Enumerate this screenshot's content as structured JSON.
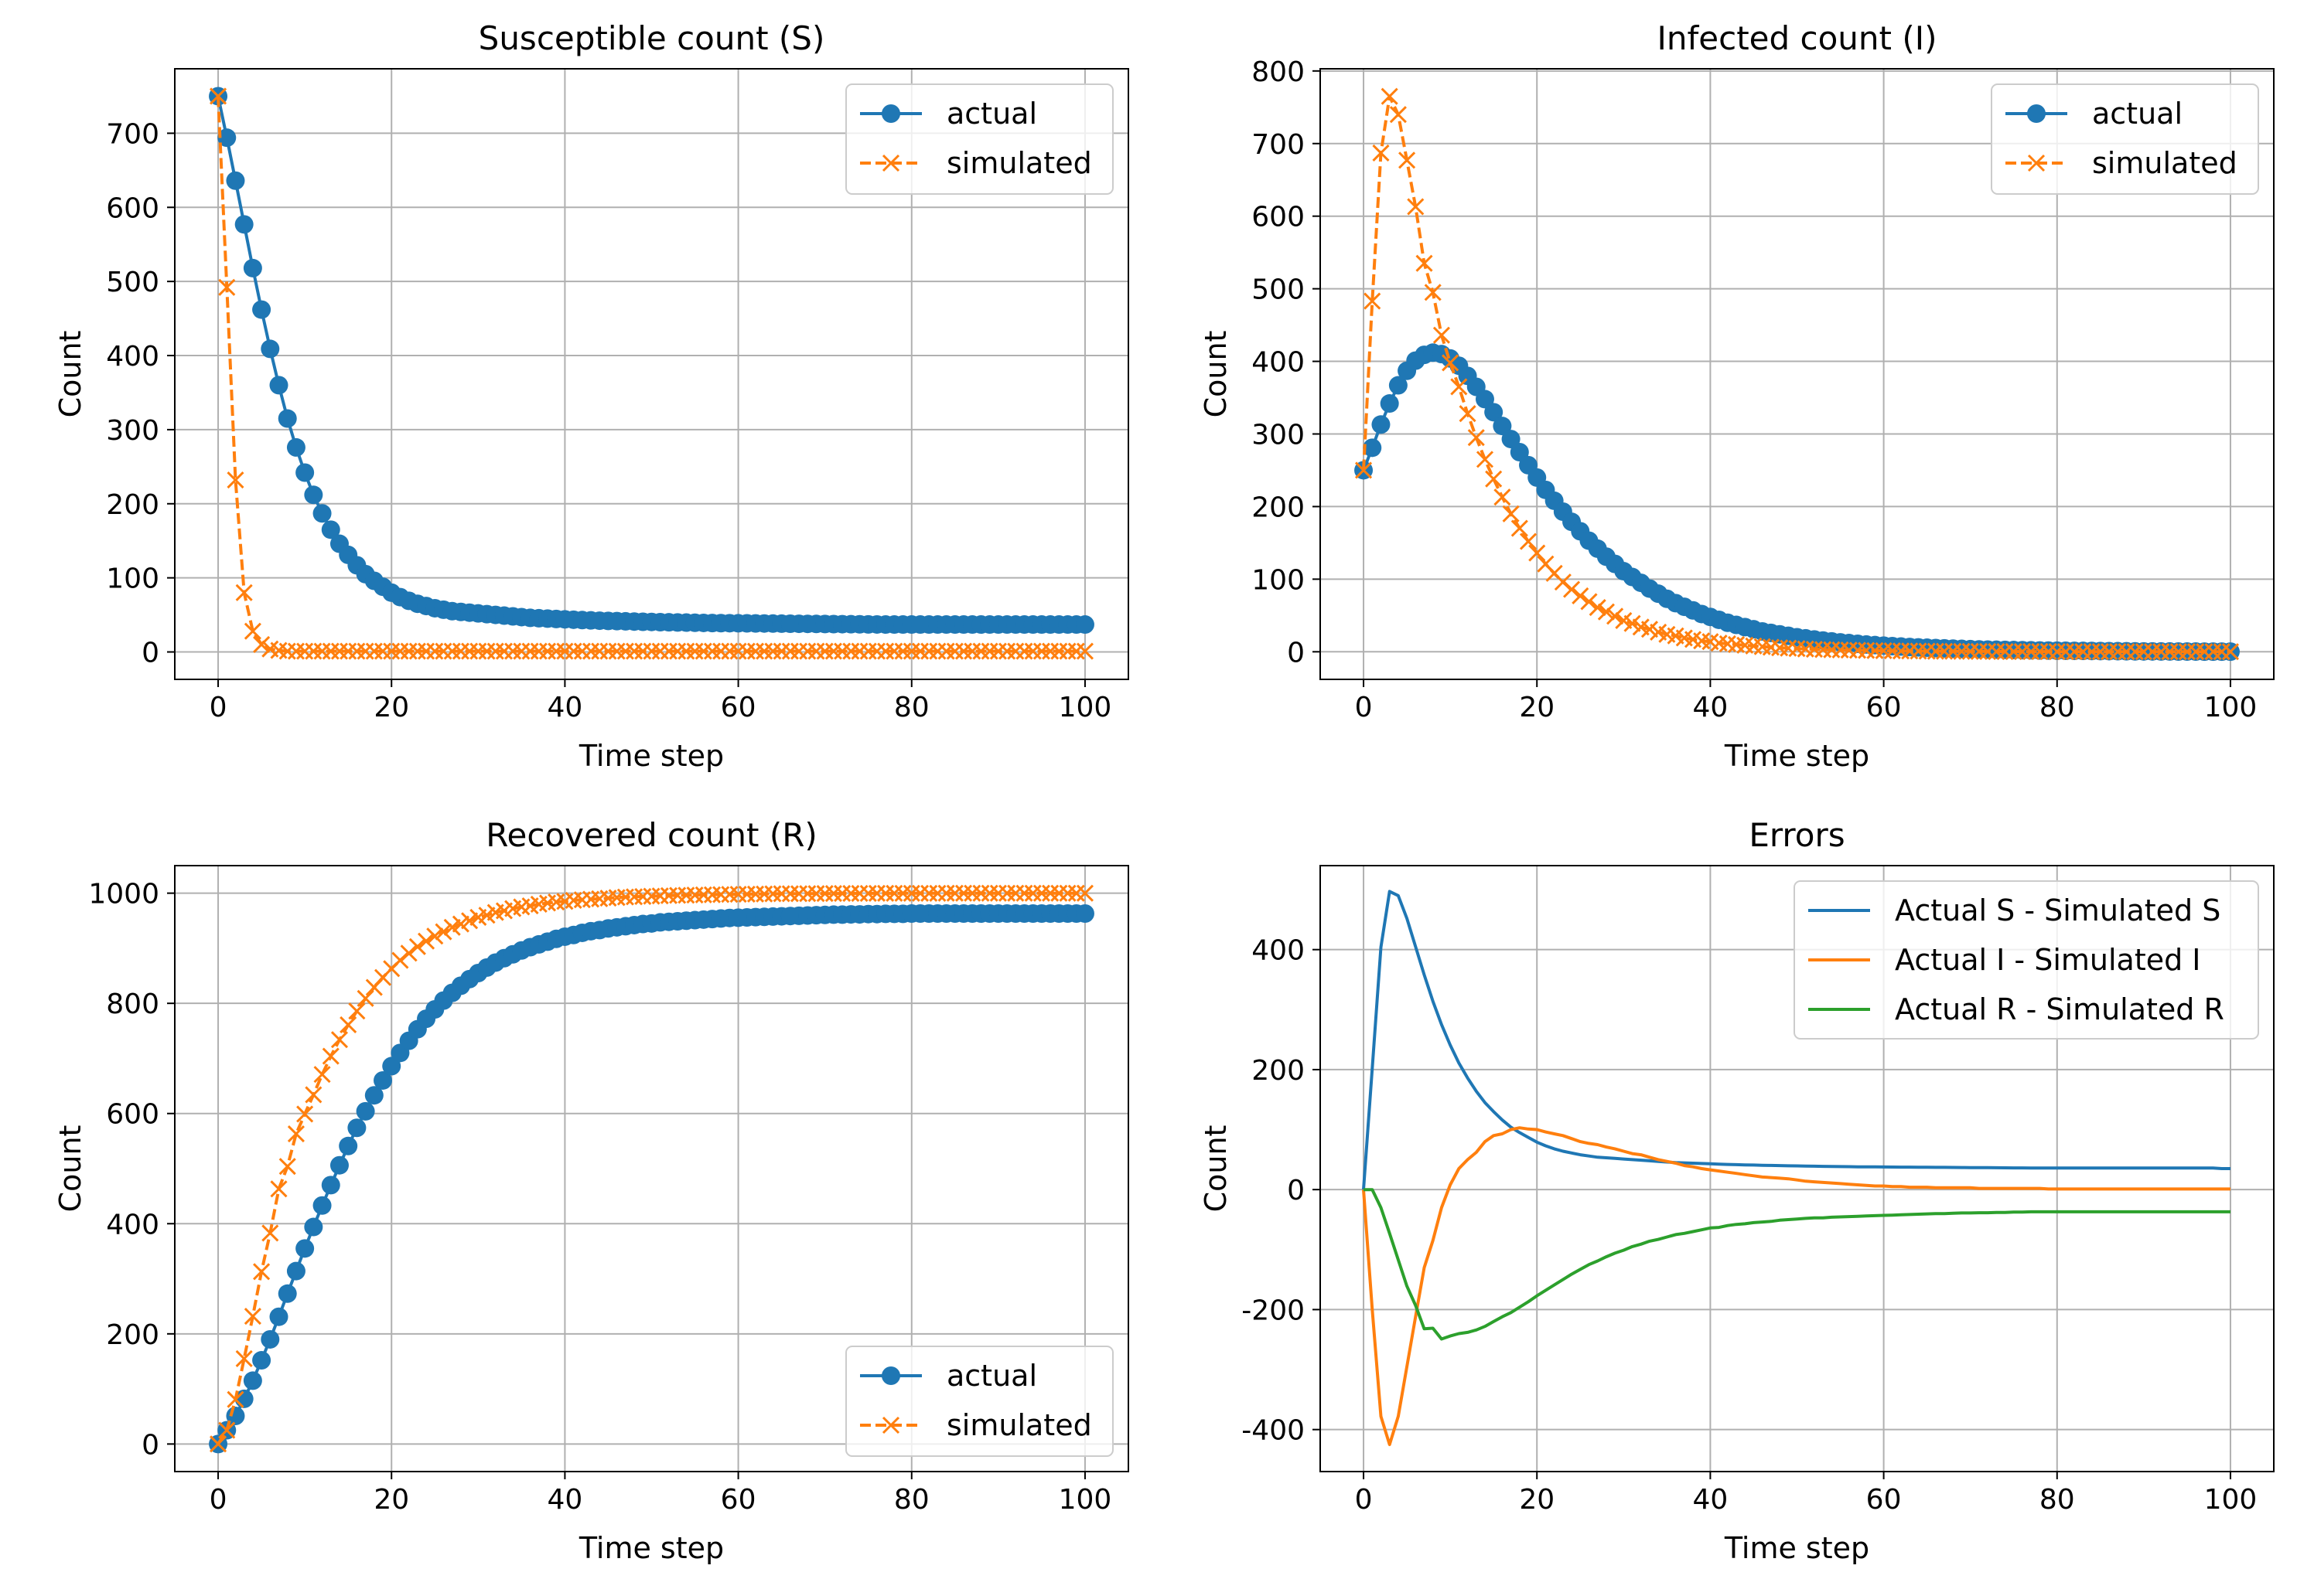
{
  "colors": {
    "blue": "#1f77b4",
    "orange": "#ff7f0e",
    "green": "#2ca02c",
    "grid": "#b0b0b0"
  },
  "chart_data": [
    {
      "type": "line",
      "title": "Susceptible count (S)",
      "xlabel": "Time step",
      "ylabel": "Count",
      "xlim": [
        -5,
        105
      ],
      "ylim": [
        -37,
        787
      ],
      "xticks": [
        0,
        20,
        40,
        60,
        80,
        100
      ],
      "yticks": [
        0,
        100,
        200,
        300,
        400,
        500,
        600,
        700
      ],
      "grid": true,
      "legend_position": "top-right",
      "series": [
        {
          "name": "actual",
          "style": "solid-circle",
          "color": "#1f77b4",
          "x_range": [
            0,
            100
          ],
          "values": [
            750,
            694,
            636,
            577,
            518,
            462,
            409,
            360,
            315,
            276,
            242,
            212,
            187,
            165,
            146,
            131,
            117,
            105,
            96,
            88,
            80,
            74,
            69,
            65,
            62,
            59,
            57,
            55,
            54,
            53,
            52,
            51,
            50,
            49,
            48,
            47,
            46,
            45.5,
            45,
            44.5,
            44,
            43.5,
            43,
            42.6,
            42.2,
            41.9,
            41.6,
            41.3,
            41,
            40.7,
            40.5,
            40.2,
            40,
            39.8,
            39.6,
            39.4,
            39.2,
            39,
            38.9,
            38.8,
            38.7,
            38.6,
            38.5,
            38.4,
            38.3,
            38.2,
            38.1,
            38,
            37.9,
            37.8,
            37.7,
            37.6,
            37.5,
            37.4,
            37.3,
            37.2,
            37.1,
            37,
            37,
            37,
            37,
            37,
            37,
            37,
            37,
            37,
            37,
            37,
            37,
            37,
            37,
            37,
            37,
            37,
            37,
            37,
            37,
            37,
            37,
            37,
            37
          ]
        },
        {
          "name": "simulated",
          "style": "dashed-x",
          "color": "#ff7f0e",
          "x_range": [
            0,
            100
          ],
          "values": [
            750,
            492,
            232,
            80,
            28,
            10,
            4,
            2,
            1,
            1,
            1,
            1,
            1,
            1,
            1,
            1,
            1,
            1,
            1,
            1,
            1,
            1,
            1,
            1,
            1,
            1,
            1,
            1,
            1,
            1,
            1,
            1,
            1,
            1,
            1,
            1,
            1,
            1,
            1,
            1,
            1,
            1,
            1,
            1,
            1,
            1,
            1,
            1,
            1,
            1,
            1,
            1,
            1,
            1,
            1,
            1,
            1,
            1,
            1,
            1,
            1,
            1,
            1,
            1,
            1,
            1,
            1,
            1,
            1,
            1,
            1,
            1,
            1,
            1,
            1,
            1,
            1,
            1,
            1,
            1,
            1,
            1,
            1,
            1,
            1,
            1,
            1,
            1,
            1,
            1,
            1,
            1,
            1,
            1,
            1,
            1,
            1,
            1,
            1,
            1,
            1
          ]
        }
      ]
    },
    {
      "type": "line",
      "title": "Infected count (I)",
      "xlabel": "Time step",
      "ylabel": "Count",
      "xlim": [
        -5,
        105
      ],
      "ylim": [
        -38,
        803
      ],
      "xticks": [
        0,
        20,
        40,
        60,
        80,
        100
      ],
      "yticks": [
        0,
        100,
        200,
        300,
        400,
        500,
        600,
        700,
        800
      ],
      "grid": true,
      "legend_position": "top-right",
      "series": [
        {
          "name": "actual",
          "style": "solid-circle",
          "color": "#1f77b4",
          "x_range": [
            0,
            100
          ],
          "values": [
            250,
            281,
            313,
            342,
            367,
            387,
            401,
            409,
            412,
            410,
            404,
            394,
            380,
            365,
            348,
            330,
            311,
            293,
            275,
            257,
            240,
            223,
            208,
            193,
            179,
            166,
            153,
            142,
            131,
            121,
            111,
            103,
            95,
            87,
            80,
            73,
            67,
            62,
            57,
            52,
            48,
            44,
            40,
            37,
            34,
            31,
            28,
            26,
            24,
            22,
            20,
            18.5,
            17,
            15.5,
            14.3,
            13,
            12,
            11,
            10,
            9.2,
            8.5,
            7.8,
            7.2,
            6.6,
            6.1,
            5.6,
            5.1,
            4.7,
            4.3,
            4,
            3.6,
            3.3,
            3,
            2.8,
            2.6,
            2.4,
            2.2,
            2,
            1.8,
            1.7,
            1.5,
            1.4,
            1.3,
            1.2,
            1.1,
            1,
            0.9,
            0.8,
            0.7,
            0.6,
            0.5,
            0.5,
            0.4,
            0.4,
            0.3,
            0.3,
            0.3,
            0.2,
            0.2,
            0.2,
            0.2
          ]
        },
        {
          "name": "simulated",
          "style": "dashed-x",
          "color": "#ff7f0e",
          "x_range": [
            0,
            100
          ],
          "values": [
            250,
            483,
            687,
            765,
            740,
            677,
            613,
            535,
            495,
            436,
            398,
            365,
            328,
            295,
            265,
            238,
            213,
            190,
            170,
            152,
            136,
            121,
            108,
            96,
            86,
            77,
            69,
            61,
            55,
            49,
            43,
            39,
            34,
            31,
            27,
            24,
            22,
            19,
            17,
            15,
            14,
            12,
            11,
            10,
            9,
            8,
            7,
            6.2,
            5.5,
            4.9,
            4.4,
            3.9,
            3.5,
            3.1,
            2.8,
            2.5,
            2.2,
            2,
            1.8,
            1.6,
            1.4,
            1.3,
            1.1,
            1,
            0.9,
            0.8,
            0.7,
            0.6,
            0.6,
            0.5,
            0.5,
            0.4,
            0.4,
            0.3,
            0.3,
            0.3,
            0.2,
            0.2,
            0.2,
            0.2,
            0.1,
            0.1,
            0.1,
            0.1,
            0.1,
            0.1,
            0.1,
            0.1,
            0.1,
            0.1,
            0.1,
            0.1,
            0.1,
            0.1,
            0.1,
            0.1,
            0.1,
            0.1,
            0.1,
            0.1,
            0.1
          ]
        }
      ]
    },
    {
      "type": "line",
      "title": "Recovered count (R)",
      "xlabel": "Time step",
      "ylabel": "Count",
      "xlim": [
        -5,
        105
      ],
      "ylim": [
        -50,
        1050
      ],
      "xticks": [
        0,
        20,
        40,
        60,
        80,
        100
      ],
      "yticks": [
        0,
        200,
        400,
        600,
        800,
        1000
      ],
      "grid": true,
      "legend_position": "bottom-right",
      "series": [
        {
          "name": "actual",
          "style": "solid-circle",
          "color": "#1f77b4",
          "x_range": [
            0,
            100
          ],
          "values": [
            0,
            25,
            51,
            82,
            115,
            152,
            190,
            231,
            273,
            314,
            355,
            394,
            433,
            470,
            506,
            541,
            574,
            604,
            633,
            660,
            686,
            710,
            732,
            753,
            772,
            789,
            805,
            819,
            832,
            844,
            855,
            865,
            874,
            882,
            889,
            896,
            902,
            907,
            912,
            917,
            921,
            924,
            928,
            931,
            933,
            936,
            938,
            940,
            942,
            944,
            945,
            947,
            948,
            949,
            950,
            951,
            952,
            953,
            954,
            955,
            955.5,
            956,
            956.5,
            957,
            957.5,
            958,
            958.5,
            959,
            959.5,
            960,
            960.5,
            961,
            961,
            961.5,
            961.5,
            962,
            962,
            962.5,
            962.5,
            962.5,
            963,
            963,
            963,
            963,
            963,
            963,
            963,
            963,
            963,
            963,
            963,
            963,
            963,
            963,
            963,
            963,
            963,
            963,
            963,
            963,
            963
          ]
        },
        {
          "name": "simulated",
          "style": "dashed-x",
          "color": "#ff7f0e",
          "x_range": [
            0,
            100
          ],
          "values": [
            0,
            25,
            81,
            155,
            232,
            313,
            383,
            463,
            504,
            563,
            599,
            634,
            671,
            704,
            734,
            761,
            786,
            809,
            829,
            847,
            863,
            878,
            891,
            903,
            913,
            922,
            930,
            938,
            944,
            950,
            956,
            960,
            965,
            968,
            972,
            975,
            977,
            980,
            982,
            984,
            985,
            987,
            988,
            989,
            990,
            991,
            992,
            993,
            993.5,
            994,
            994.5,
            995,
            995.5,
            996,
            996.3,
            996.6,
            996.9,
            997.2,
            997.5,
            997.8,
            998,
            998.2,
            998.4,
            998.6,
            998.8,
            999,
            999,
            999.1,
            999.2,
            999.3,
            999.4,
            999.4,
            999.5,
            999.5,
            999.6,
            999.6,
            999.7,
            999.7,
            999.7,
            999.8,
            999.8,
            999.8,
            999.8,
            999.8,
            999.9,
            999.9,
            999.9,
            999.9,
            999.9,
            999.9,
            999.9,
            999.9,
            999.9,
            999.9,
            999.9,
            999.9,
            999.9,
            999.9,
            999.9,
            999.9,
            999.9
          ]
        }
      ]
    },
    {
      "type": "line",
      "title": "Errors",
      "xlabel": "Time step",
      "ylabel": "Count",
      "xlim": [
        -5,
        105
      ],
      "ylim": [
        -470,
        540
      ],
      "xticks": [
        0,
        20,
        40,
        60,
        80,
        100
      ],
      "yticks": [
        -400,
        -200,
        0,
        200,
        400
      ],
      "ytick_labels": [
        "−400",
        "−200",
        "0",
        "200",
        "400"
      ],
      "grid": true,
      "legend_position": "top-right",
      "series": [
        {
          "name": "Actual S - Simulated S",
          "style": "solid",
          "color": "#1f77b4",
          "x_range": [
            0,
            100
          ],
          "values": [
            0,
            202,
            404,
            497,
            490,
            452,
            405,
            358,
            314,
            275,
            241,
            211,
            186,
            164,
            145,
            130,
            116,
            104,
            95,
            87,
            79,
            73,
            68,
            64,
            61,
            58,
            56,
            54,
            53,
            52,
            51,
            50,
            49,
            48,
            47,
            46,
            45,
            44.5,
            44,
            43.5,
            43,
            42.5,
            42,
            41.6,
            41.2,
            40.9,
            40.6,
            40.3,
            40,
            39.7,
            39.5,
            39.2,
            39,
            38.8,
            38.6,
            38.4,
            38.2,
            38,
            37.9,
            37.8,
            37.7,
            37.6,
            37.5,
            37.4,
            37.3,
            37.2,
            37.1,
            37,
            36.9,
            36.8,
            36.7,
            36.6,
            36.5,
            36.4,
            36.3,
            36.2,
            36.1,
            36,
            36,
            36,
            36,
            36,
            36,
            36,
            36,
            36,
            36,
            36,
            36,
            36,
            36,
            36,
            36,
            36,
            36,
            36,
            36,
            36,
            36,
            35,
            35
          ]
        },
        {
          "name": "Actual I - Simulated I",
          "style": "solid",
          "color": "#ff7f0e",
          "x_range": [
            0,
            100
          ],
          "values": [
            0,
            -200,
            -378,
            -425,
            -378,
            -295,
            -212,
            -130,
            -85,
            -30,
            8,
            35,
            50,
            62,
            80,
            90,
            93,
            100,
            103,
            101,
            100,
            96,
            93,
            90,
            85,
            80,
            77,
            75,
            71,
            68,
            64,
            60,
            58,
            54,
            50,
            47,
            44,
            40,
            38,
            35,
            33,
            31,
            29,
            27,
            25,
            23,
            21,
            20,
            19,
            18,
            16,
            14,
            13,
            12,
            11,
            10,
            9,
            8,
            7,
            6,
            6,
            5,
            5,
            4,
            4,
            4,
            3,
            3,
            3,
            3,
            3,
            2,
            2,
            2,
            2,
            2,
            2,
            2,
            2,
            1,
            1,
            1,
            1,
            1,
            1,
            1,
            1,
            1,
            1,
            1,
            1,
            1,
            1,
            1,
            1,
            1,
            1,
            1,
            1,
            1,
            1
          ]
        },
        {
          "name": "Actual R - Simulated R",
          "style": "solid",
          "color": "#2ca02c",
          "x_range": [
            0,
            100
          ],
          "values": [
            0,
            0,
            -30,
            -73,
            -117,
            -161,
            -193,
            -232,
            -231,
            -249,
            -244,
            -240,
            -238,
            -234,
            -228,
            -220,
            -212,
            -205,
            -196,
            -187,
            -177,
            -168,
            -159,
            -150,
            -141,
            -133,
            -125,
            -119,
            -112,
            -106,
            -101,
            -95,
            -91,
            -86,
            -83,
            -79,
            -75,
            -73,
            -70,
            -67,
            -64,
            -63,
            -60,
            -58,
            -57,
            -55,
            -54,
            -53,
            -51,
            -50,
            -49,
            -48,
            -47,
            -47,
            -46,
            -45.5,
            -45,
            -44.5,
            -44,
            -43.5,
            -43,
            -42.5,
            -42,
            -41.5,
            -41,
            -40.5,
            -40,
            -40,
            -39.5,
            -39,
            -39,
            -38.5,
            -38.5,
            -38,
            -38,
            -37.5,
            -37.5,
            -37,
            -37,
            -37,
            -37,
            -37,
            -37,
            -37,
            -37,
            -37,
            -37,
            -37,
            -37,
            -37,
            -37,
            -37,
            -37,
            -37,
            -37,
            -37,
            -37,
            -37,
            -37,
            -37,
            -37
          ]
        }
      ]
    }
  ]
}
